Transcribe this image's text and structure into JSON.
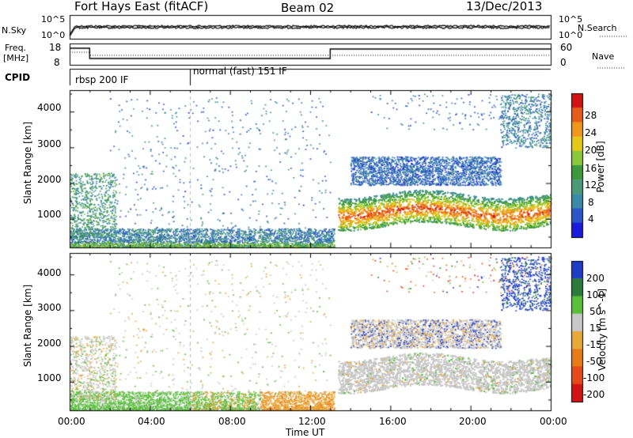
{
  "header": {
    "title": "Fort Hays East (fitACF)",
    "beam": "Beam 02",
    "date": "13/Dec/2013"
  },
  "noise_panel": {
    "left_label": "N.Sky",
    "left_ticks": [
      "10^5",
      "10^0"
    ],
    "right_label": "N.Search",
    "right_ticks": [
      "10^5",
      "10^0"
    ]
  },
  "freq_panel": {
    "left_label_line1": "Freq.",
    "left_label_line2": "[MHz]",
    "left_ticks": [
      "18",
      "8"
    ],
    "right_label": "Nave",
    "right_ticks": [
      "60",
      "0"
    ]
  },
  "cpid_panel": {
    "label": "CPID",
    "modes": [
      {
        "name": "rbsp 200 IF",
        "start_hour": 0
      },
      {
        "name": "normal (fast) 151 IF",
        "start_hour": 6
      }
    ]
  },
  "chart_data": [
    {
      "type": "heatmap",
      "name": "power",
      "ylabel": "Slant Range [km]",
      "yticks": [
        "1000",
        "2000",
        "3000",
        "4000"
      ],
      "ylim": [
        200,
        4600
      ],
      "xlim": [
        0,
        24
      ],
      "colorbar": {
        "label": "Power [dB]",
        "ticks": [
          "4",
          "8",
          "12",
          "16",
          "20",
          "24",
          "28"
        ],
        "range": [
          0,
          31
        ],
        "colors": [
          "#1a1adc",
          "#2a56c8",
          "#3a8aa8",
          "#4a9a7a",
          "#3a9a3a",
          "#8ac83a",
          "#e6c81a",
          "#f0961a",
          "#e65a1a",
          "#d21414"
        ]
      },
      "features": [
        {
          "desc": "near-range scatter",
          "start_hour": 0,
          "end_hour": 13,
          "range_km": [
            200,
            700
          ]
        },
        {
          "desc": "ionospheric band",
          "start_hour": 13.5,
          "end_hour": 24,
          "range_km": [
            800,
            1900
          ],
          "peak_db": 26
        },
        {
          "desc": "upper band",
          "start_hour": 14.5,
          "end_hour": 21,
          "range_km": [
            2000,
            2700
          ]
        },
        {
          "desc": "early echoes",
          "start_hour": 0,
          "end_hour": 2.2,
          "range_km": [
            1400,
            2300
          ]
        }
      ]
    },
    {
      "type": "heatmap",
      "name": "velocity",
      "ylabel": "Slant Range [km]",
      "yticks": [
        "1000",
        "2000",
        "3000",
        "4000"
      ],
      "ylim": [
        200,
        4600
      ],
      "xlim": [
        0,
        24
      ],
      "colorbar": {
        "label": "Velocity [m s^-1]",
        "ticks": [
          "200",
          "100",
          "50",
          "15",
          "-15",
          "-50",
          "-100",
          "-200"
        ],
        "colors": [
          "#1e3cc8",
          "#2a7a3a",
          "#58c03a",
          "#c8c8c8",
          "#e8a83a",
          "#e87a1a",
          "#e64a1a",
          "#d21414"
        ]
      },
      "features": [
        {
          "desc": "ground scatter (low velocity)",
          "start_hour": 13.5,
          "end_hour": 24,
          "range_km": [
            800,
            1900
          ]
        },
        {
          "desc": "near-range positive velocity",
          "start_hour": 0,
          "end_hour": 10,
          "range_km": [
            200,
            700
          ]
        },
        {
          "desc": "near-range negative velocity",
          "start_hour": 9,
          "end_hour": 13,
          "range_km": [
            200,
            700
          ]
        }
      ]
    }
  ],
  "time_axis": {
    "ticks": [
      "00:00",
      "04:00",
      "08:00",
      "12:00",
      "16:00",
      "20:00",
      "00:00"
    ],
    "label": "Time UT"
  }
}
